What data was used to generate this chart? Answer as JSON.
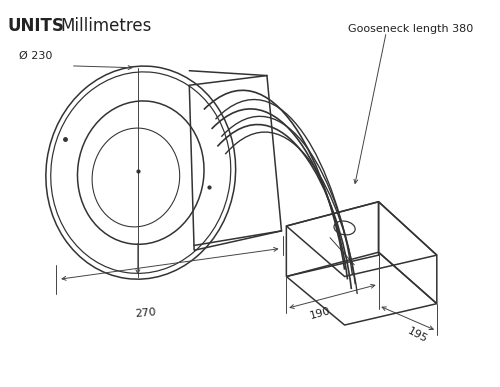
{
  "title_bold": "UNITS",
  "title_regular": "   Millimetres",
  "bg_color": "#ffffff",
  "line_color": "#333333",
  "dim_color": "#444444",
  "text_color": "#222222",
  "annotations": {
    "diameter": "Ø 230",
    "depth": "270",
    "gooseneck": "Gooseneck length 380",
    "width": "190",
    "length": "195"
  },
  "figsize": [
    5.0,
    3.87
  ],
  "dpi": 100
}
